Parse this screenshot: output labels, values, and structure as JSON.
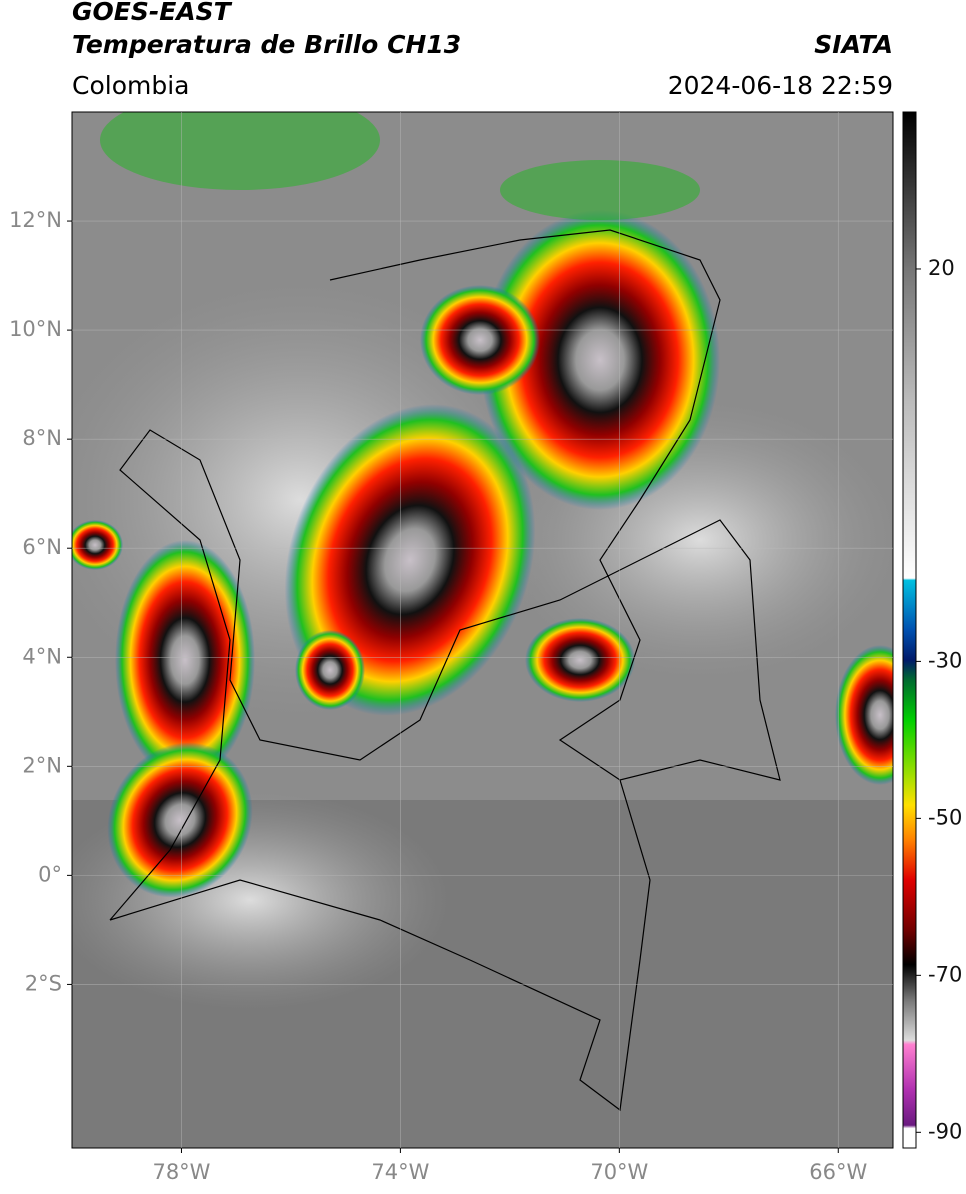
{
  "header": {
    "satellite": "GOES-EAST",
    "product": "Temperatura de Brillo CH13",
    "source": "SIATA",
    "region": "Colombia",
    "datetime": "2024-06-18 22:59"
  },
  "map": {
    "xlim": [
      -80,
      -65
    ],
    "ylim": [
      -5,
      14
    ],
    "xticks": [
      {
        "value": -78,
        "label": "78°W"
      },
      {
        "value": -74,
        "label": "74°W"
      },
      {
        "value": -70,
        "label": "70°W"
      },
      {
        "value": -66,
        "label": "66°W"
      }
    ],
    "yticks": [
      {
        "value": 12,
        "label": "12°N"
      },
      {
        "value": 10,
        "label": "10°N"
      },
      {
        "value": 8,
        "label": "8°N"
      },
      {
        "value": 6,
        "label": "6°N"
      },
      {
        "value": 4,
        "label": "4°N"
      },
      {
        "value": 2,
        "label": "2°N"
      },
      {
        "value": 0,
        "label": "0°"
      },
      {
        "value": -2,
        "label": "2°S"
      }
    ],
    "grid": true
  },
  "colorbar": {
    "lim": [
      -92,
      40
    ],
    "ticks": [
      20,
      -30,
      -50,
      -70,
      -90
    ]
  }
}
